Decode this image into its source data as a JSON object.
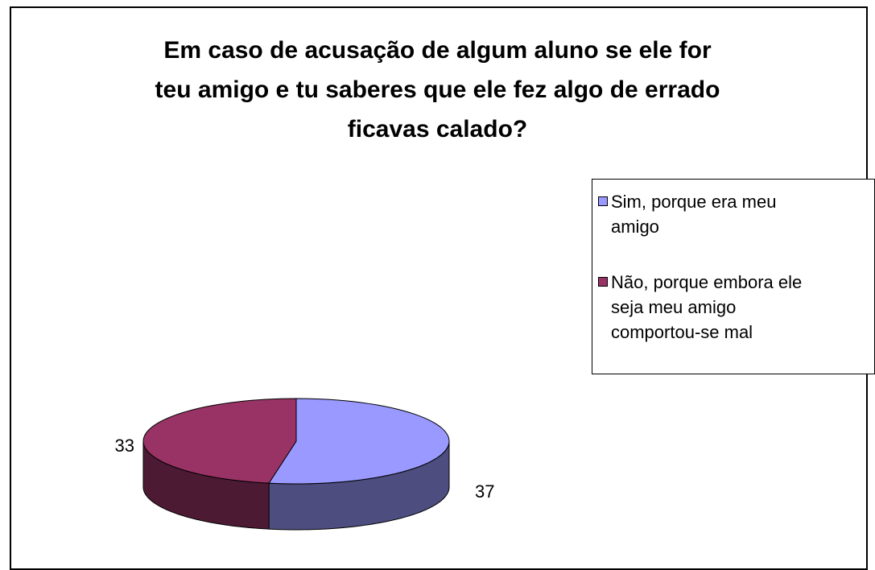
{
  "chart_data": {
    "type": "pie3d",
    "title": "Em caso de acusação de algum aluno se ele for\nteu amigo e tu saberes que ele fez algo de errado\nficavas calado?",
    "categories": [
      "Sim, porque era meu\namigo",
      "Não, porque embora ele\nseja meu amigo\ncomportou-se mal"
    ],
    "values": [
      37,
      33
    ],
    "colors": [
      "#9999ff",
      "#993366"
    ],
    "side_colors": [
      "#4d4d80",
      "#4d1a33"
    ]
  }
}
